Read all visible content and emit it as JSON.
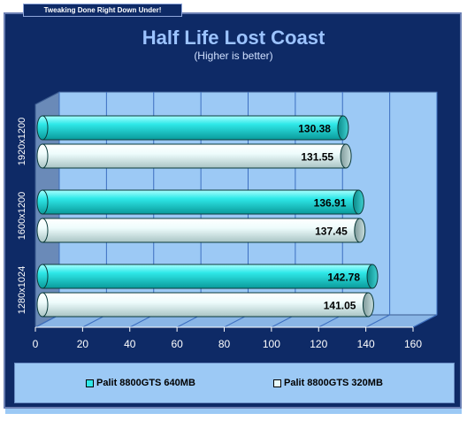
{
  "header": {
    "site_tag": "Tweaking Done Right Down Under!"
  },
  "chart_data": {
    "type": "bar",
    "orientation": "horizontal",
    "title": "Half Life Lost Coast",
    "subtitle": "(Higher is better)",
    "categories": [
      "1920x1200",
      "1600x1200",
      "1280x1024"
    ],
    "series": [
      {
        "name": "Palit 8800GTS 640MB",
        "values": [
          130.38,
          136.91,
          142.78
        ],
        "color": "#2ee8e8"
      },
      {
        "name": "Palit 8800GTS 320MB",
        "values": [
          131.55,
          137.45,
          141.05
        ],
        "color": "#e8fbfb"
      }
    ],
    "xlim": [
      0,
      160
    ],
    "xticks": [
      "0",
      "20",
      "40",
      "60",
      "80",
      "100",
      "120",
      "140",
      "160"
    ],
    "grid": true,
    "legend_position": "bottom"
  }
}
